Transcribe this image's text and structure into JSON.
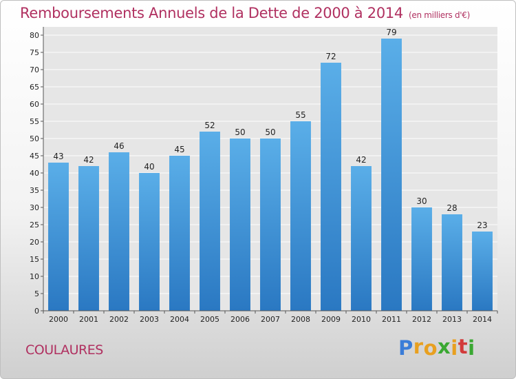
{
  "chart_data": {
    "type": "bar",
    "title": "Remboursements Annuels de la Dette de 2000 à 2014",
    "subtitle": "(en milliers d'€)",
    "categories": [
      "2000",
      "2001",
      "2002",
      "2003",
      "2004",
      "2005",
      "2006",
      "2007",
      "2008",
      "2009",
      "2010",
      "2011",
      "2012",
      "2013",
      "2014"
    ],
    "values": [
      43,
      42,
      46,
      40,
      45,
      52,
      50,
      50,
      55,
      72,
      42,
      79,
      30,
      28,
      23
    ],
    "ylim": [
      0,
      80
    ],
    "yticks": [
      0,
      5,
      10,
      15,
      20,
      25,
      30,
      35,
      40,
      45,
      50,
      55,
      60,
      65,
      70,
      75,
      80
    ],
    "grid": true,
    "bar_color": "#3a8fd8",
    "data_labels": true
  },
  "footer": {
    "place_name": "COULAURES",
    "logo_letters": [
      "P",
      "r",
      "o",
      "x",
      "i",
      "t",
      "i"
    ],
    "logo_colors": [
      "#3b7dd8",
      "#e8a020",
      "#e8a020",
      "#3aa832",
      "#e8a020",
      "#d23b3b",
      "#3aa832"
    ]
  },
  "colors": {
    "title": "#b03060",
    "grid": "#ffffff"
  }
}
